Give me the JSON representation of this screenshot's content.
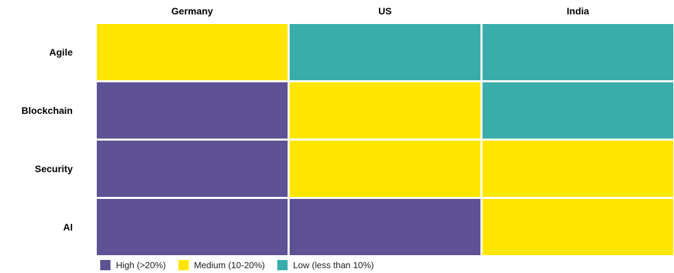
{
  "chart_data": {
    "type": "heatmap",
    "columns": [
      "Germany",
      "US",
      "India"
    ],
    "rows": [
      "Agile",
      "Blockchain",
      "Security",
      "AI"
    ],
    "cells": [
      [
        "medium",
        "low",
        "low"
      ],
      [
        "high",
        "medium",
        "low"
      ],
      [
        "high",
        "medium",
        "medium"
      ],
      [
        "high",
        "high",
        "medium"
      ]
    ],
    "legend": [
      {
        "key": "high",
        "label": "High (>20%)",
        "color": "#5e5294"
      },
      {
        "key": "medium",
        "label": "Medium (10-20%)",
        "color": "#ffe600"
      },
      {
        "key": "low",
        "label": "Low (less than 10%)",
        "color": "#3aadab"
      }
    ],
    "legend_position": "bottom-left",
    "grid": false
  }
}
